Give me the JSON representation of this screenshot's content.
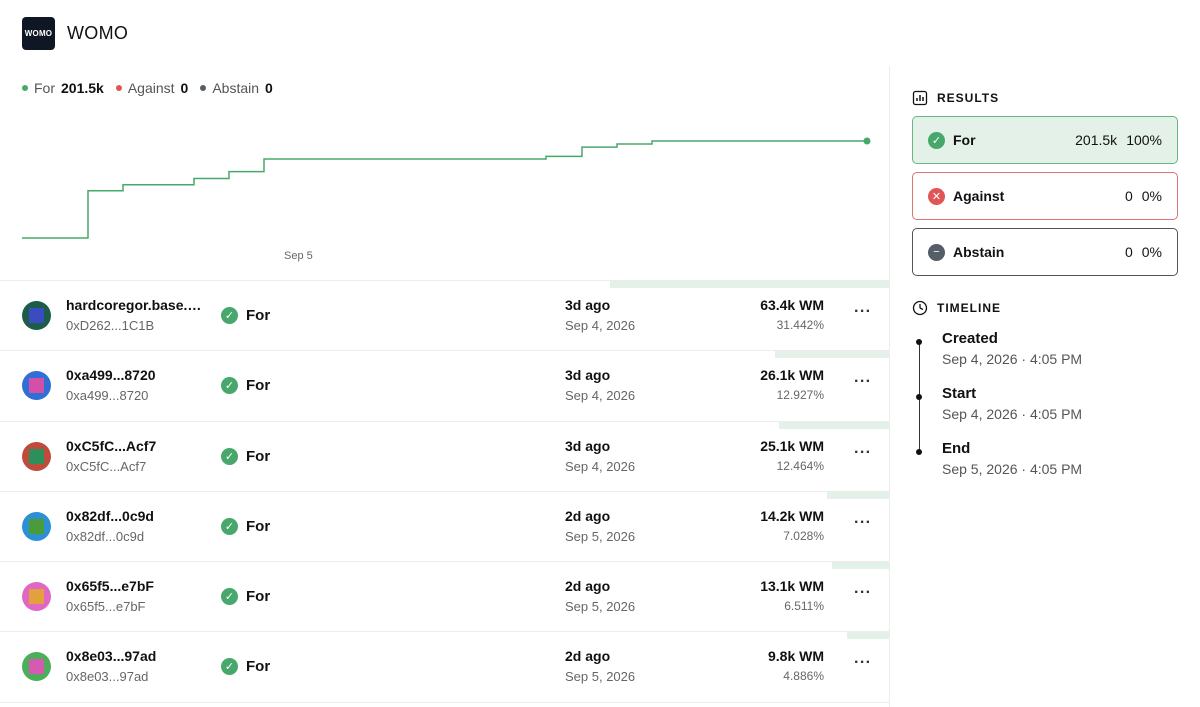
{
  "dao": {
    "logo_text": "WOMO",
    "name": "WOMO"
  },
  "legend": [
    {
      "label": "For",
      "value": "201.5k",
      "color": "#48a86c"
    },
    {
      "label": "Against",
      "value": "0",
      "color": "#e05656"
    },
    {
      "label": "Abstain",
      "value": "0",
      "color": "#555d66"
    }
  ],
  "chart_data": {
    "type": "line",
    "x_tick_labels": [
      "Sep 5"
    ],
    "series": [
      {
        "name": "For",
        "values": [
          0.0,
          98.1,
          110.6,
          123.6,
          137.8,
          164.0,
          169.6,
          188.7,
          195.2,
          201.5,
          201.5
        ]
      }
    ],
    "ylim": [
      0,
      201.5
    ],
    "grid": false
  },
  "votes": [
    {
      "name": "hardcoregor.base.eth",
      "address": "0xD262...1C1B",
      "support": "For",
      "time": "3d ago",
      "date": "Sep 4, 2026",
      "power": "63.4k WM",
      "percent": "31.442%",
      "share": 31.442
    },
    {
      "name": "0xa499...8720",
      "address": "0xa499...8720",
      "support": "For",
      "time": "3d ago",
      "date": "Sep 4, 2026",
      "power": "26.1k WM",
      "percent": "12.927%",
      "share": 12.927
    },
    {
      "name": "0xC5fC...Acf7",
      "address": "0xC5fC...Acf7",
      "support": "For",
      "time": "3d ago",
      "date": "Sep 4, 2026",
      "power": "25.1k WM",
      "percent": "12.464%",
      "share": 12.464
    },
    {
      "name": "0x82df...0c9d",
      "address": "0x82df...0c9d",
      "support": "For",
      "time": "2d ago",
      "date": "Sep 5, 2026",
      "power": "14.2k WM",
      "percent": "7.028%",
      "share": 7.028
    },
    {
      "name": "0x65f5...e7bF",
      "address": "0x65f5...e7bF",
      "support": "For",
      "time": "2d ago",
      "date": "Sep 5, 2026",
      "power": "13.1k WM",
      "percent": "6.511%",
      "share": 6.511
    },
    {
      "name": "0x8e03...97ad",
      "address": "0x8e03...97ad",
      "support": "For",
      "time": "2d ago",
      "date": "Sep 5, 2026",
      "power": "9.8k WM",
      "percent": "4.886%",
      "share": 4.886
    }
  ],
  "results": {
    "title": "RESULTS",
    "for": {
      "label": "For",
      "value": "201.5k",
      "percent": "100%"
    },
    "against": {
      "label": "Against",
      "value": "0",
      "percent": "0%"
    },
    "abstain": {
      "label": "Abstain",
      "value": "0",
      "percent": "0%"
    }
  },
  "timeline": {
    "title": "TIMELINE",
    "items": [
      {
        "label": "Created",
        "date": "Sep 4, 2026 · 4:05 PM"
      },
      {
        "label": "Start",
        "date": "Sep 4, 2026 · 4:05 PM"
      },
      {
        "label": "End",
        "date": "Sep 5, 2026 · 4:05 PM"
      }
    ]
  }
}
